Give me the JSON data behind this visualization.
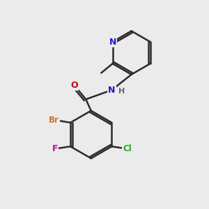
{
  "background_color": "#ebebeb",
  "bond_color": "#2a2a2a",
  "atom_colors": {
    "N": "#1a1acc",
    "O": "#cc0000",
    "Br": "#cc7722",
    "F": "#cc00aa",
    "Cl": "#22aa22",
    "H": "#666666"
  },
  "figsize": [
    3.0,
    3.0
  ],
  "dpi": 100
}
